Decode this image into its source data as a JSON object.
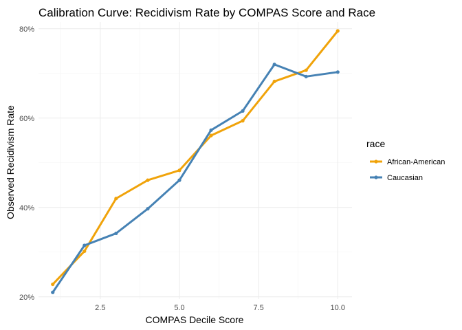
{
  "chart_data": {
    "type": "line",
    "title": "Calibration Curve: Recidivism Rate by COMPAS Score and Race",
    "xlabel": "COMPAS Decile Score",
    "ylabel": "Observed Recidivism Rate",
    "x": [
      1,
      2,
      3,
      4,
      5,
      6,
      7,
      8,
      9,
      10
    ],
    "xlim": [
      0.55,
      10.45
    ],
    "ylim": [
      0.195,
      0.815
    ],
    "x_ticks": [
      2.5,
      5.0,
      7.5,
      10.0
    ],
    "x_tick_labels": [
      "2.5",
      "5.0",
      "7.5",
      "10.0"
    ],
    "y_ticks": [
      0.2,
      0.4,
      0.6,
      0.8
    ],
    "y_tick_labels": [
      "20%",
      "40%",
      "60%",
      "80%"
    ],
    "grid": true,
    "legend": {
      "title": "race",
      "position": "right"
    },
    "series": [
      {
        "name": "African-American",
        "color": "#f0a30a",
        "values": [
          0.228,
          0.302,
          0.42,
          0.461,
          0.483,
          0.561,
          0.594,
          0.682,
          0.707,
          0.795
        ]
      },
      {
        "name": "Caucasian",
        "color": "#4682b4",
        "values": [
          0.21,
          0.315,
          0.342,
          0.397,
          0.461,
          0.573,
          0.616,
          0.72,
          0.693,
          0.703
        ]
      }
    ]
  }
}
